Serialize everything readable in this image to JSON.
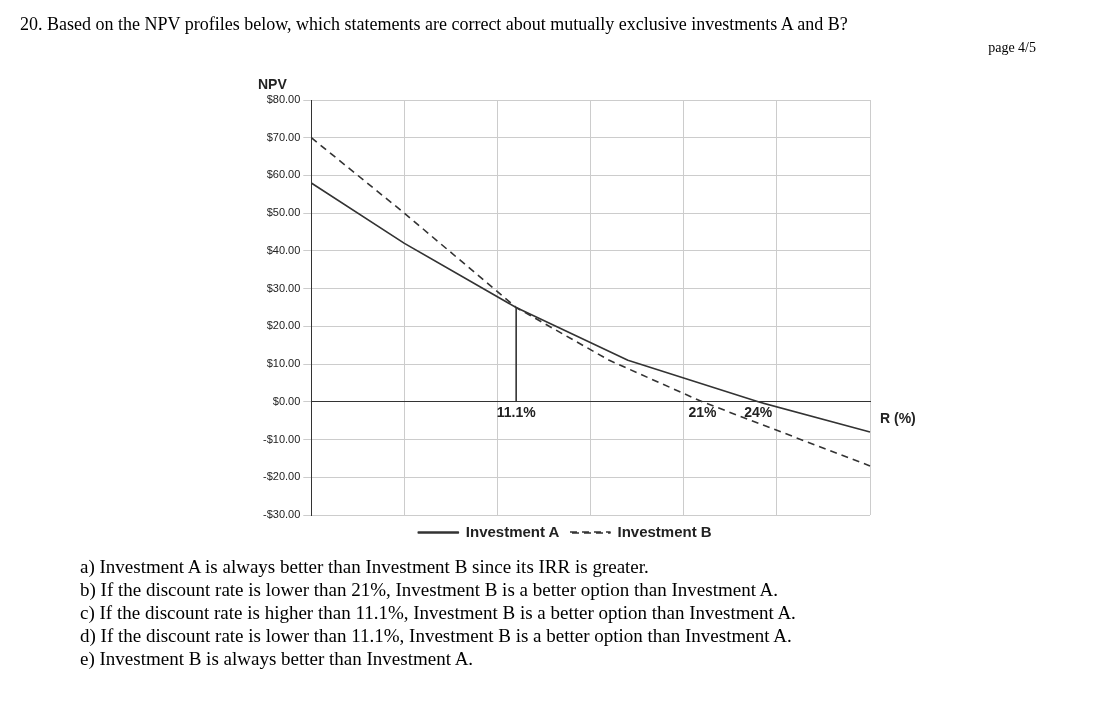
{
  "chart_data": {
    "type": "line",
    "title": "20. Based on the NPV profiles below, which statements are correct about mutually exclusive investments A and B?",
    "ylabel": "NPV",
    "xlabel": "R (%)",
    "categories": [
      null,
      null,
      null,
      null,
      null,
      null,
      null,
      null,
      null,
      null,
      null,
      "11.1%",
      null,
      null,
      null,
      null,
      null,
      null,
      null,
      null,
      null,
      "21%",
      null,
      null,
      "24%",
      null,
      null,
      null,
      null,
      null,
      null
    ],
    "ylim": [
      -30,
      80
    ],
    "yticks": [
      {
        "value": -30,
        "label": "-$30.00"
      },
      {
        "value": -20,
        "label": "-$20.00"
      },
      {
        "value": -10,
        "label": "-$10.00"
      },
      {
        "value": 0,
        "label": "$0.00"
      },
      {
        "value": 10,
        "label": "$10.00"
      },
      {
        "value": 20,
        "label": "$20.00"
      },
      {
        "value": 30,
        "label": "$30.00"
      },
      {
        "value": 40,
        "label": "$40.00"
      },
      {
        "value": 50,
        "label": "$50.00"
      },
      {
        "value": 60,
        "label": "$60.00"
      },
      {
        "value": 70,
        "label": "$70.00"
      },
      {
        "value": 80,
        "label": "$80.00"
      }
    ],
    "grid": true,
    "legend": "bottom",
    "marker": "none",
    "series": [
      {
        "name": "Investment A",
        "color": "#333333",
        "line_style": "solid",
        "values": [
          58,
          null,
          null,
          null,
          null,
          42,
          null,
          null,
          null,
          null,
          null,
          25,
          null,
          null,
          null,
          null,
          null,
          11,
          null,
          null,
          null,
          null,
          null,
          null,
          0,
          null,
          null,
          null,
          null,
          null,
          -8
        ]
      },
      {
        "name": "Investment B",
        "color": "#333333",
        "line_style": "dashed",
        "values": [
          70,
          null,
          null,
          null,
          null,
          50,
          null,
          null,
          null,
          null,
          null,
          25,
          null,
          null,
          null,
          null,
          11,
          null,
          null,
          null,
          null,
          0,
          null,
          null,
          null,
          null,
          null,
          null,
          null,
          null,
          -17
        ]
      },
      {
        "color": "#333333",
        "line_style": "solid",
        "x": [
          "11.1%",
          "11.1%"
        ],
        "values": [
          0,
          25
        ]
      }
    ],
    "annotations": [
      "page 4/5",
      "a) Investment A is always better than Investment B since its IRR is greater.",
      "b) If the discount rate is lower than 21%, Investment B is a better option than Investment A.",
      "c) If the discount rate is higher than 11.1%, Investment B is a better option than Investment A.",
      "d) If the discount rate is lower than 11.1%, Investment B is a better option than Investment A.",
      "e) Investment B is always better than Investment A."
    ]
  }
}
